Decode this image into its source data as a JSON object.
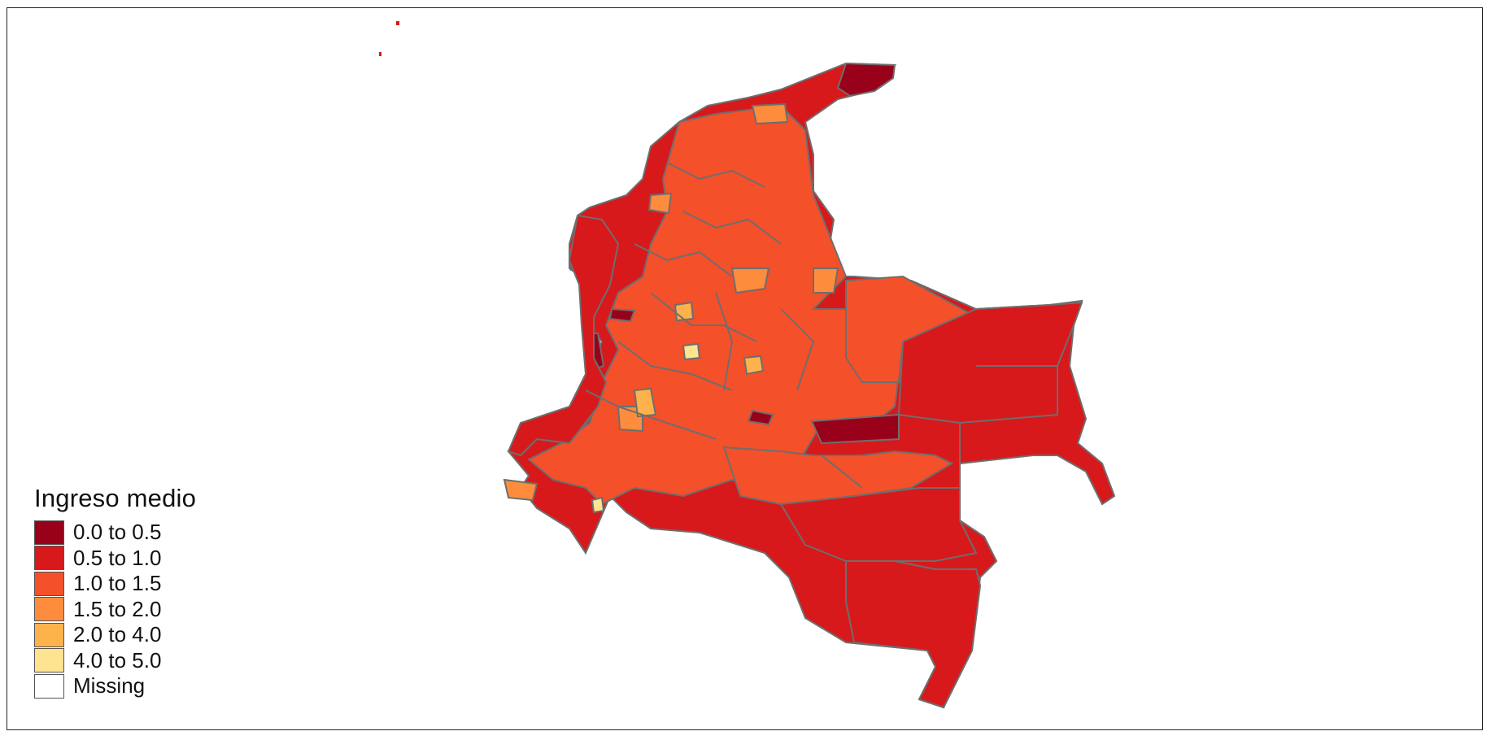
{
  "map": {
    "legend": {
      "title": "Ingreso medio",
      "items": [
        {
          "label": "0.0 to 0.5",
          "color": "#99001a"
        },
        {
          "label": "0.5 to 1.0",
          "color": "#d7191c"
        },
        {
          "label": "1.0 to 1.5",
          "color": "#f4502a"
        },
        {
          "label": "1.5 to 2.0",
          "color": "#fd8d3c"
        },
        {
          "label": "2.0 to 4.0",
          "color": "#feb24c"
        },
        {
          "label": "4.0 to 5.0",
          "color": "#fee391"
        },
        {
          "label": "Missing",
          "color": "#ffffff"
        }
      ]
    },
    "border_color": "#6e6e6e"
  }
}
